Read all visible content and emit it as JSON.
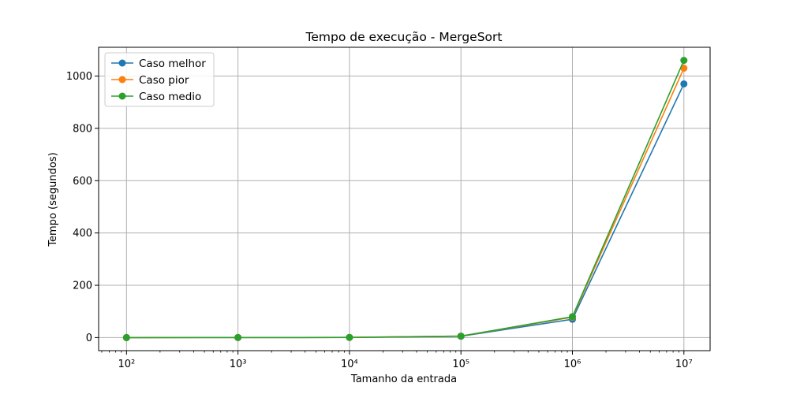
{
  "chart_data": {
    "type": "line",
    "title": "Tempo de execução - MergeSort",
    "xlabel": "Tamanho da entrada",
    "ylabel": "Tempo (segundos)",
    "xscale": "log",
    "x": [
      100,
      1000,
      10000,
      100000,
      1000000,
      10000000
    ],
    "x_tick_labels": [
      "10²",
      "10³",
      "10⁴",
      "10⁵",
      "10⁶",
      "10⁷"
    ],
    "y_ticks": [
      0,
      200,
      400,
      600,
      800,
      1000
    ],
    "ylim": [
      -50,
      1110
    ],
    "grid": true,
    "legend_position": "top-left",
    "series": [
      {
        "name": "Caso melhor",
        "color": "#1f77b4",
        "values": [
          0.02,
          0.2,
          0.5,
          5,
          70,
          970
        ]
      },
      {
        "name": "Caso pior",
        "color": "#ff7f0e",
        "values": [
          0.02,
          0.2,
          0.6,
          5.5,
          78,
          1030
        ]
      },
      {
        "name": "Caso medio",
        "color": "#2ca02c",
        "values": [
          0.02,
          0.2,
          0.6,
          5.5,
          80,
          1060
        ]
      }
    ]
  }
}
